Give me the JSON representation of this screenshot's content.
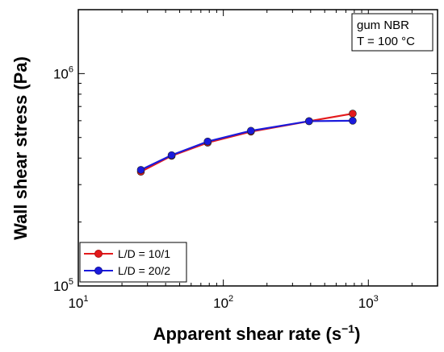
{
  "chart_data": {
    "type": "line",
    "xscale": "log",
    "yscale": "log",
    "xlim": [
      10,
      3000
    ],
    "ylim": [
      100000,
      2000000
    ],
    "xlabel": "Apparent shear rate (s",
    "xlabel_exp": "−1",
    "xlabel_close": ")",
    "ylabel": "Wall shear stress (Pa)",
    "xticks": [
      {
        "value": 10,
        "base": "10",
        "exp": "1"
      },
      {
        "value": 100,
        "base": "10",
        "exp": "2"
      },
      {
        "value": 1000,
        "base": "10",
        "exp": "3"
      }
    ],
    "yticks": [
      {
        "value": 100000,
        "base": "10",
        "exp": "5"
      },
      {
        "value": 1000000,
        "base": "10",
        "exp": "6"
      }
    ],
    "annotation": [
      "gum NBR",
      "T = 100 °C"
    ],
    "legend_position": "bottom-left",
    "series": [
      {
        "name": "L/D = 10/1",
        "color": "#e41a1c",
        "x": [
          27,
          44,
          78,
          155,
          390,
          780
        ],
        "y": [
          345000,
          410000,
          473000,
          533000,
          597000,
          648000
        ]
      },
      {
        "name": "L/D = 20/2",
        "color": "#1a1adc",
        "x": [
          27,
          44,
          78,
          155,
          390,
          780
        ],
        "y": [
          352000,
          413000,
          479000,
          538000,
          597000,
          600000
        ]
      }
    ]
  }
}
